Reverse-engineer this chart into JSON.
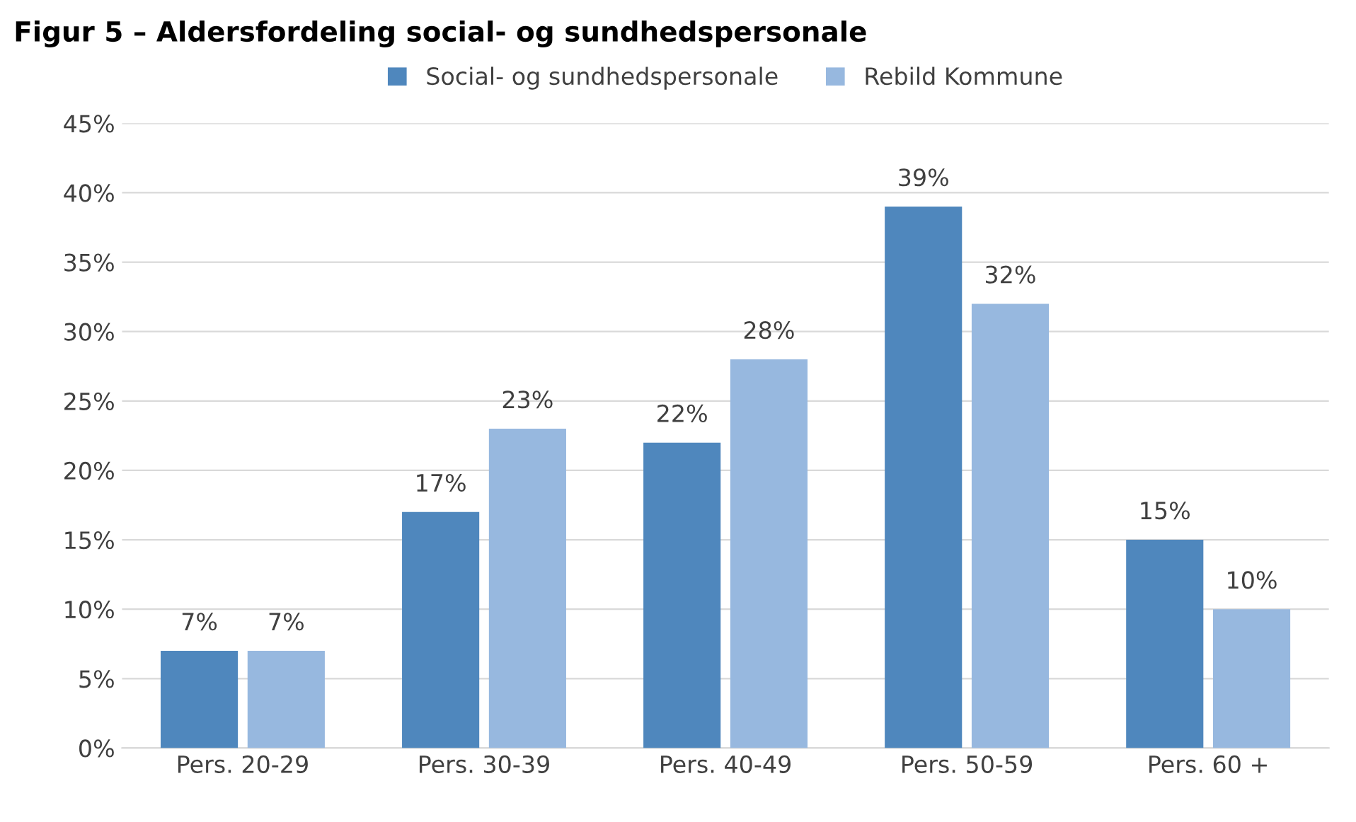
{
  "chart_data": {
    "type": "bar",
    "title": "Figur 5 – Aldersfordeling social- og sundhedspersonale",
    "categories": [
      "Pers. 20-29",
      "Pers. 30-39",
      "Pers. 40-49",
      "Pers. 50-59",
      "Pers. 60 +"
    ],
    "series": [
      {
        "name": "Social- og sundhedspersonale",
        "color": "#4f87bd",
        "values": [
          7,
          17,
          22,
          39,
          15
        ]
      },
      {
        "name": "Rebild Kommune",
        "color": "#97b8df",
        "values": [
          7,
          23,
          28,
          32,
          10
        ]
      }
    ],
    "ylim": [
      0,
      45
    ],
    "yticks": [
      {
        "value": 0,
        "label": "0%"
      },
      {
        "value": 5,
        "label": "5%"
      },
      {
        "value": 10,
        "label": "10%"
      },
      {
        "value": 15,
        "label": "15%"
      },
      {
        "value": 20,
        "label": "20%"
      },
      {
        "value": 25,
        "label": "25%"
      },
      {
        "value": 30,
        "label": "30%"
      },
      {
        "value": 35,
        "label": "35%"
      },
      {
        "value": 40,
        "label": "40%"
      },
      {
        "value": 45,
        "label": "45%"
      }
    ],
    "value_labels": [
      [
        "7%",
        "17%",
        "22%",
        "39%",
        "15%"
      ],
      [
        "7%",
        "23%",
        "28%",
        "32%",
        "10%"
      ]
    ],
    "grid": "y",
    "legend": "top"
  }
}
